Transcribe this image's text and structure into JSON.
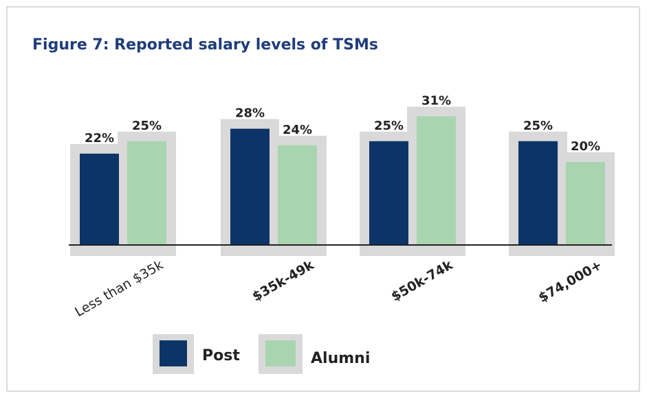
{
  "chart_data": {
    "type": "bar",
    "title": "Figure 7: Reported salary levels of TSMs",
    "categories": [
      "Less than $35k",
      "$35k-49k",
      "$50k-74k",
      "$74,000+"
    ],
    "series": [
      {
        "name": "Post",
        "color": "#0d3466",
        "values": [
          22,
          28,
          25,
          25
        ],
        "value_labels": [
          "22%",
          "28%",
          "25%",
          "25%"
        ]
      },
      {
        "name": "Alumni",
        "color": "#a8d5b0",
        "values": [
          25,
          24,
          31,
          20
        ],
        "value_labels": [
          "25%",
          "24%",
          "31%",
          "20%"
        ]
      }
    ]
  }
}
